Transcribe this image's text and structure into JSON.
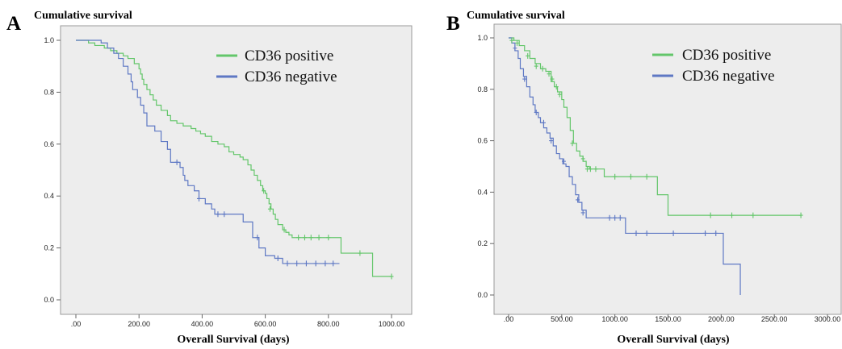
{
  "chart_data": [
    {
      "panel": "A",
      "type": "line",
      "ylabel": "Cumulative survival",
      "xlabel": "Overall Survival (days)",
      "xlim": [
        0,
        1000
      ],
      "ylim": [
        0,
        1
      ],
      "xticks": [
        ".00",
        "200.00",
        "400.00",
        "600.00",
        "800.00",
        "1000.00"
      ],
      "yticks": [
        "0.0",
        "0.2",
        "0.4",
        "0.6",
        "0.8",
        "1.0"
      ],
      "legend_position": "top-right",
      "series": [
        {
          "name": "CD36 positive",
          "color": "#63c66a",
          "steps": [
            [
              0,
              1.0
            ],
            [
              40,
              0.99
            ],
            [
              60,
              0.98
            ],
            [
              90,
              0.97
            ],
            [
              110,
              0.96
            ],
            [
              130,
              0.95
            ],
            [
              150,
              0.94
            ],
            [
              165,
              0.93
            ],
            [
              185,
              0.91
            ],
            [
              200,
              0.89
            ],
            [
              205,
              0.87
            ],
            [
              210,
              0.85
            ],
            [
              215,
              0.83
            ],
            [
              225,
              0.81
            ],
            [
              235,
              0.79
            ],
            [
              245,
              0.77
            ],
            [
              255,
              0.75
            ],
            [
              270,
              0.73
            ],
            [
              290,
              0.71
            ],
            [
              300,
              0.69
            ],
            [
              320,
              0.68
            ],
            [
              340,
              0.67
            ],
            [
              365,
              0.66
            ],
            [
              380,
              0.65
            ],
            [
              395,
              0.64
            ],
            [
              410,
              0.63
            ],
            [
              430,
              0.61
            ],
            [
              450,
              0.6
            ],
            [
              470,
              0.59
            ],
            [
              485,
              0.57
            ],
            [
              500,
              0.56
            ],
            [
              520,
              0.55
            ],
            [
              530,
              0.54
            ],
            [
              545,
              0.52
            ],
            [
              555,
              0.5
            ],
            [
              565,
              0.48
            ],
            [
              575,
              0.46
            ],
            [
              585,
              0.44
            ],
            [
              592,
              0.42
            ],
            [
              600,
              0.41
            ],
            [
              605,
              0.39
            ],
            [
              612,
              0.37
            ],
            [
              618,
              0.35
            ],
            [
              625,
              0.33
            ],
            [
              632,
              0.31
            ],
            [
              640,
              0.29
            ],
            [
              655,
              0.27
            ],
            [
              665,
              0.26
            ],
            [
              675,
              0.25
            ],
            [
              685,
              0.24
            ],
            [
              840,
              0.18
            ],
            [
              940,
              0.09
            ]
          ],
          "end_x": 1000,
          "censored": [
            [
              595,
              0.42
            ],
            [
              615,
              0.35
            ],
            [
              660,
              0.27
            ],
            [
              705,
              0.24
            ],
            [
              725,
              0.24
            ],
            [
              745,
              0.24
            ],
            [
              770,
              0.24
            ],
            [
              800,
              0.24
            ],
            [
              900,
              0.18
            ],
            [
              1000,
              0.09
            ]
          ]
        },
        {
          "name": "CD36 negative",
          "color": "#5e78c4",
          "steps": [
            [
              0,
              1.0
            ],
            [
              70,
              1.0
            ],
            [
              80,
              0.99
            ],
            [
              100,
              0.97
            ],
            [
              120,
              0.95
            ],
            [
              135,
              0.93
            ],
            [
              150,
              0.9
            ],
            [
              165,
              0.87
            ],
            [
              175,
              0.84
            ],
            [
              180,
              0.81
            ],
            [
              195,
              0.78
            ],
            [
              205,
              0.75
            ],
            [
              215,
              0.72
            ],
            [
              225,
              0.67
            ],
            [
              250,
              0.65
            ],
            [
              270,
              0.61
            ],
            [
              290,
              0.58
            ],
            [
              300,
              0.53
            ],
            [
              330,
              0.51
            ],
            [
              340,
              0.48
            ],
            [
              345,
              0.46
            ],
            [
              355,
              0.44
            ],
            [
              375,
              0.42
            ],
            [
              390,
              0.39
            ],
            [
              410,
              0.37
            ],
            [
              430,
              0.35
            ],
            [
              440,
              0.33
            ],
            [
              530,
              0.3
            ],
            [
              560,
              0.24
            ],
            [
              580,
              0.2
            ],
            [
              600,
              0.17
            ],
            [
              630,
              0.16
            ],
            [
              655,
              0.14
            ]
          ],
          "end_x": 835,
          "censored": [
            [
              320,
              0.53
            ],
            [
              390,
              0.39
            ],
            [
              450,
              0.33
            ],
            [
              470,
              0.33
            ],
            [
              575,
              0.24
            ],
            [
              640,
              0.16
            ],
            [
              670,
              0.14
            ],
            [
              700,
              0.14
            ],
            [
              730,
              0.14
            ],
            [
              760,
              0.14
            ],
            [
              790,
              0.14
            ],
            [
              815,
              0.14
            ]
          ]
        }
      ]
    },
    {
      "panel": "B",
      "type": "line",
      "ylabel": "Cumulative survival",
      "xlabel": "Overall Survival (days)",
      "xlim": [
        0,
        3000
      ],
      "ylim": [
        0,
        1
      ],
      "xticks": [
        ".00",
        "500.00",
        "1000.00",
        "1500.00",
        "2000.00",
        "2500.00",
        "3000.00"
      ],
      "yticks": [
        "0.0",
        "0.2",
        "0.4",
        "0.6",
        "0.8",
        "1.0"
      ],
      "legend_position": "top-right",
      "series": [
        {
          "name": "CD36 positive",
          "color": "#63c66a",
          "steps": [
            [
              0,
              1.0
            ],
            [
              50,
              0.99
            ],
            [
              100,
              0.97
            ],
            [
              150,
              0.95
            ],
            [
              200,
              0.92
            ],
            [
              250,
              0.9
            ],
            [
              300,
              0.88
            ],
            [
              350,
              0.87
            ],
            [
              400,
              0.83
            ],
            [
              430,
              0.81
            ],
            [
              460,
              0.79
            ],
            [
              500,
              0.76
            ],
            [
              520,
              0.73
            ],
            [
              550,
              0.69
            ],
            [
              580,
              0.64
            ],
            [
              610,
              0.59
            ],
            [
              640,
              0.56
            ],
            [
              670,
              0.54
            ],
            [
              700,
              0.52
            ],
            [
              730,
              0.5
            ],
            [
              760,
              0.49
            ],
            [
              900,
              0.46
            ],
            [
              1400,
              0.39
            ],
            [
              1500,
              0.31
            ]
          ],
          "end_x": 2750,
          "censored": [
            [
              30,
              0.99
            ],
            [
              80,
              0.98
            ],
            [
              180,
              0.93
            ],
            [
              260,
              0.89
            ],
            [
              320,
              0.88
            ],
            [
              380,
              0.86
            ],
            [
              410,
              0.84
            ],
            [
              450,
              0.81
            ],
            [
              480,
              0.78
            ],
            [
              600,
              0.59
            ],
            [
              700,
              0.53
            ],
            [
              740,
              0.49
            ],
            [
              770,
              0.49
            ],
            [
              820,
              0.49
            ],
            [
              1000,
              0.46
            ],
            [
              1150,
              0.46
            ],
            [
              1300,
              0.46
            ],
            [
              1900,
              0.31
            ],
            [
              2100,
              0.31
            ],
            [
              2300,
              0.31
            ],
            [
              2750,
              0.31
            ]
          ]
        },
        {
          "name": "CD36 negative",
          "color": "#5e78c4",
          "steps": [
            [
              0,
              1.0
            ],
            [
              30,
              0.98
            ],
            [
              60,
              0.95
            ],
            [
              90,
              0.92
            ],
            [
              110,
              0.88
            ],
            [
              140,
              0.85
            ],
            [
              170,
              0.81
            ],
            [
              200,
              0.77
            ],
            [
              230,
              0.74
            ],
            [
              250,
              0.71
            ],
            [
              280,
              0.69
            ],
            [
              300,
              0.67
            ],
            [
              330,
              0.65
            ],
            [
              360,
              0.63
            ],
            [
              390,
              0.61
            ],
            [
              420,
              0.58
            ],
            [
              450,
              0.55
            ],
            [
              480,
              0.53
            ],
            [
              510,
              0.51
            ],
            [
              540,
              0.5
            ],
            [
              570,
              0.46
            ],
            [
              600,
              0.43
            ],
            [
              630,
              0.39
            ],
            [
              660,
              0.36
            ],
            [
              690,
              0.33
            ],
            [
              730,
              0.3
            ],
            [
              1100,
              0.24
            ],
            [
              2020,
              0.12
            ],
            [
              2180,
              0.0
            ]
          ],
          "end_x": 2180,
          "censored": [
            [
              60,
              0.96
            ],
            [
              150,
              0.84
            ],
            [
              260,
              0.71
            ],
            [
              330,
              0.67
            ],
            [
              400,
              0.6
            ],
            [
              520,
              0.52
            ],
            [
              650,
              0.37
            ],
            [
              700,
              0.32
            ],
            [
              950,
              0.3
            ],
            [
              1000,
              0.3
            ],
            [
              1050,
              0.3
            ],
            [
              1200,
              0.24
            ],
            [
              1300,
              0.24
            ],
            [
              1550,
              0.24
            ],
            [
              1850,
              0.24
            ],
            [
              1950,
              0.24
            ]
          ]
        }
      ]
    }
  ]
}
